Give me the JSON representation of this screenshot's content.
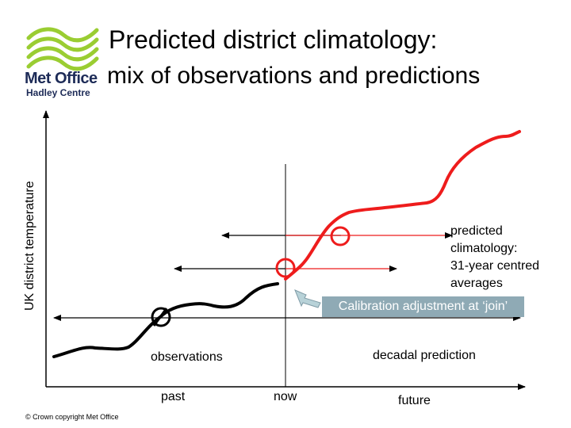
{
  "logo": {
    "icon": "met-office-wave-logo",
    "brand_color": "#9acd32",
    "name": "Met Office",
    "subtitle": "Hadley Centre"
  },
  "title": {
    "line1": "Predicted district climatology:",
    "line2": "mix of observations and predictions"
  },
  "axis": {
    "ylabel": "UK district temperature"
  },
  "labels": {
    "predicted": [
      "predicted",
      "climatology:",
      "31-year centred",
      "averages"
    ],
    "calibration": "Calibration adjustment at ‘join’",
    "observations": "observations",
    "decadal_prediction": "decadal prediction",
    "past": "past",
    "now": "now",
    "future": "future"
  },
  "copyright": "© Crown copyright   Met Office",
  "colors": {
    "observations": "#000000",
    "prediction": "#ee1c1c",
    "calibration_box": "#8faab5",
    "calibration_arrow": "#b8d2d8"
  }
}
